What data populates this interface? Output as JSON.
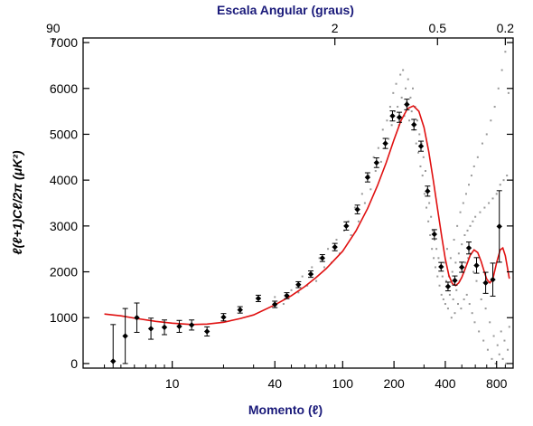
{
  "chart_data": {
    "type": "scatter",
    "title": "",
    "xlabel": "Momento (ℓ)",
    "ylabel": "ℓ(ℓ+1)Cℓ/2π (μK²)",
    "top_xlabel": "Escala Angular (graus)",
    "x_scale": "log",
    "xlim": [
      3,
      1000
    ],
    "ylim": [
      -100,
      7100
    ],
    "x_ticks": [
      10,
      40,
      100,
      200,
      400,
      800
    ],
    "x_tick_labels": [
      "10",
      "40",
      "100",
      "200",
      "400",
      "800"
    ],
    "top_ticks_multipole": [
      2,
      90,
      360,
      900
    ],
    "top_tick_labels": [
      "90",
      "2",
      "0.5",
      "0.2"
    ],
    "y_ticks": [
      0,
      1000,
      2000,
      3000,
      4000,
      5000,
      6000,
      7000
    ],
    "y_tick_labels": [
      "0",
      "1000",
      "2000",
      "3000",
      "4000",
      "5000",
      "6000",
      "7000"
    ],
    "grid": false,
    "colors": {
      "model": "#e01010",
      "binned": "#000000",
      "raw": "#999999",
      "axis_title": "#1a1a7a"
    },
    "series": [
      {
        "kind": "model-curve",
        "points": [
          [
            4,
            1080
          ],
          [
            5,
            1040
          ],
          [
            6,
            990
          ],
          [
            8,
            920
          ],
          [
            10,
            880
          ],
          [
            13,
            850
          ],
          [
            16,
            860
          ],
          [
            20,
            900
          ],
          [
            25,
            980
          ],
          [
            30,
            1060
          ],
          [
            40,
            1280
          ],
          [
            50,
            1480
          ],
          [
            60,
            1680
          ],
          [
            70,
            1880
          ],
          [
            80,
            2070
          ],
          [
            100,
            2450
          ],
          [
            120,
            2900
          ],
          [
            140,
            3380
          ],
          [
            160,
            3880
          ],
          [
            180,
            4380
          ],
          [
            200,
            4880
          ],
          [
            220,
            5300
          ],
          [
            240,
            5560
          ],
          [
            260,
            5620
          ],
          [
            280,
            5500
          ],
          [
            300,
            5150
          ],
          [
            320,
            4620
          ],
          [
            340,
            4000
          ],
          [
            360,
            3380
          ],
          [
            380,
            2800
          ],
          [
            400,
            2280
          ],
          [
            420,
            1920
          ],
          [
            440,
            1740
          ],
          [
            460,
            1700
          ],
          [
            480,
            1760
          ],
          [
            500,
            1880
          ],
          [
            530,
            2120
          ],
          [
            560,
            2360
          ],
          [
            590,
            2480
          ],
          [
            620,
            2420
          ],
          [
            650,
            2220
          ],
          [
            680,
            1980
          ],
          [
            700,
            1840
          ],
          [
            730,
            1760
          ],
          [
            760,
            1840
          ],
          [
            800,
            2200
          ],
          [
            840,
            2480
          ],
          [
            870,
            2520
          ],
          [
            900,
            2350
          ],
          [
            930,
            2050
          ],
          [
            950,
            1850
          ]
        ]
      },
      {
        "kind": "binned-points",
        "points": [
          {
            "x": 4.5,
            "y": 50,
            "err": 800
          },
          {
            "x": 5.3,
            "y": 600,
            "err": 600
          },
          {
            "x": 6.2,
            "y": 1000,
            "err": 320
          },
          {
            "x": 7.5,
            "y": 760,
            "err": 230
          },
          {
            "x": 9,
            "y": 790,
            "err": 160
          },
          {
            "x": 11,
            "y": 810,
            "err": 130
          },
          {
            "x": 13,
            "y": 840,
            "err": 110
          },
          {
            "x": 16,
            "y": 700,
            "err": 100
          },
          {
            "x": 20,
            "y": 1010,
            "err": 80
          },
          {
            "x": 25,
            "y": 1170,
            "err": 70
          },
          {
            "x": 32,
            "y": 1420,
            "err": 70
          },
          {
            "x": 40,
            "y": 1290,
            "err": 70
          },
          {
            "x": 47,
            "y": 1480,
            "err": 65
          },
          {
            "x": 55,
            "y": 1720,
            "err": 65
          },
          {
            "x": 65,
            "y": 1950,
            "err": 70
          },
          {
            "x": 76,
            "y": 2300,
            "err": 75
          },
          {
            "x": 90,
            "y": 2540,
            "err": 80
          },
          {
            "x": 105,
            "y": 3000,
            "err": 90
          },
          {
            "x": 122,
            "y": 3360,
            "err": 95
          },
          {
            "x": 140,
            "y": 4060,
            "err": 100
          },
          {
            "x": 158,
            "y": 4380,
            "err": 105
          },
          {
            "x": 178,
            "y": 4800,
            "err": 110
          },
          {
            "x": 196,
            "y": 5400,
            "err": 110
          },
          {
            "x": 215,
            "y": 5370,
            "err": 110
          },
          {
            "x": 238,
            "y": 5650,
            "err": 115
          },
          {
            "x": 262,
            "y": 5210,
            "err": 115
          },
          {
            "x": 288,
            "y": 4740,
            "err": 110
          },
          {
            "x": 315,
            "y": 3760,
            "err": 110
          },
          {
            "x": 345,
            "y": 2820,
            "err": 100
          },
          {
            "x": 378,
            "y": 2110,
            "err": 95
          },
          {
            "x": 415,
            "y": 1680,
            "err": 95
          },
          {
            "x": 455,
            "y": 1810,
            "err": 100
          },
          {
            "x": 500,
            "y": 2100,
            "err": 110
          },
          {
            "x": 550,
            "y": 2520,
            "err": 130
          },
          {
            "x": 610,
            "y": 2140,
            "err": 170
          },
          {
            "x": 690,
            "y": 1760,
            "err": 230
          },
          {
            "x": 760,
            "y": 1830,
            "err": 360
          },
          {
            "x": 830,
            "y": 2990,
            "err": 780
          }
        ]
      },
      {
        "kind": "raw-scatter",
        "description_level": "unbinned per-multipole estimates (sampled)",
        "points": [
          [
            40,
            1450
          ],
          [
            45,
            1300
          ],
          [
            50,
            1600
          ],
          [
            55,
            1550
          ],
          [
            58,
            1900
          ],
          [
            62,
            1700
          ],
          [
            66,
            2100
          ],
          [
            70,
            1800
          ],
          [
            73,
            2300
          ],
          [
            78,
            2100
          ],
          [
            82,
            2500
          ],
          [
            86,
            2200
          ],
          [
            92,
            2700
          ],
          [
            96,
            2400
          ],
          [
            102,
            2900
          ],
          [
            108,
            3100
          ],
          [
            112,
            2800
          ],
          [
            118,
            3400
          ],
          [
            124,
            3100
          ],
          [
            130,
            3700
          ],
          [
            135,
            3500
          ],
          [
            142,
            4100
          ],
          [
            146,
            3800
          ],
          [
            152,
            4500
          ],
          [
            156,
            4200
          ],
          [
            162,
            4700
          ],
          [
            168,
            4400
          ],
          [
            172,
            5100
          ],
          [
            176,
            4700
          ],
          [
            182,
            5300
          ],
          [
            186,
            4900
          ],
          [
            190,
            5600
          ],
          [
            194,
            5200
          ],
          [
            198,
            5900
          ],
          [
            202,
            5500
          ],
          [
            206,
            6100
          ],
          [
            210,
            5600
          ],
          [
            214,
            5200
          ],
          [
            218,
            6300
          ],
          [
            222,
            5800
          ],
          [
            226,
            6400
          ],
          [
            230,
            5400
          ],
          [
            234,
            6000
          ],
          [
            238,
            5700
          ],
          [
            242,
            6200
          ],
          [
            246,
            5300
          ],
          [
            250,
            5800
          ],
          [
            254,
            5500
          ],
          [
            258,
            6000
          ],
          [
            262,
            5100
          ],
          [
            266,
            5600
          ],
          [
            270,
            4800
          ],
          [
            274,
            5300
          ],
          [
            278,
            4600
          ],
          [
            282,
            5000
          ],
          [
            286,
            4300
          ],
          [
            290,
            4800
          ],
          [
            294,
            4100
          ],
          [
            298,
            4500
          ],
          [
            302,
            3700
          ],
          [
            306,
            4200
          ],
          [
            310,
            3400
          ],
          [
            314,
            3800
          ],
          [
            318,
            3100
          ],
          [
            322,
            3500
          ],
          [
            326,
            2800
          ],
          [
            330,
            3200
          ],
          [
            334,
            2500
          ],
          [
            338,
            2900
          ],
          [
            342,
            2300
          ],
          [
            346,
            2700
          ],
          [
            350,
            2100
          ],
          [
            355,
            2500
          ],
          [
            360,
            1900
          ],
          [
            365,
            2300
          ],
          [
            370,
            1700
          ],
          [
            375,
            2100
          ],
          [
            380,
            1500
          ],
          [
            385,
            1900
          ],
          [
            390,
            1400
          ],
          [
            395,
            2200
          ],
          [
            400,
            1300
          ],
          [
            405,
            1800
          ],
          [
            410,
            2500
          ],
          [
            415,
            1200
          ],
          [
            420,
            1900
          ],
          [
            425,
            1500
          ],
          [
            430,
            2300
          ],
          [
            435,
            1000
          ],
          [
            440,
            2000
          ],
          [
            445,
            1400
          ],
          [
            450,
            2700
          ],
          [
            455,
            1100
          ],
          [
            460,
            2200
          ],
          [
            465,
            1600
          ],
          [
            470,
            3000
          ],
          [
            475,
            1300
          ],
          [
            480,
            2400
          ],
          [
            485,
            1800
          ],
          [
            490,
            3300
          ],
          [
            495,
            1200
          ],
          [
            500,
            2600
          ],
          [
            505,
            2000
          ],
          [
            510,
            3500
          ],
          [
            515,
            1400
          ],
          [
            520,
            2800
          ],
          [
            525,
            2200
          ],
          [
            530,
            3700
          ],
          [
            535,
            1500
          ],
          [
            540,
            2900
          ],
          [
            545,
            2300
          ],
          [
            550,
            3900
          ],
          [
            555,
            1300
          ],
          [
            560,
            3000
          ],
          [
            565,
            2400
          ],
          [
            570,
            4100
          ],
          [
            575,
            1100
          ],
          [
            580,
            3100
          ],
          [
            585,
            2000
          ],
          [
            590,
            4300
          ],
          [
            595,
            900
          ],
          [
            600,
            3200
          ],
          [
            610,
            1800
          ],
          [
            620,
            4500
          ],
          [
            630,
            700
          ],
          [
            640,
            3300
          ],
          [
            650,
            1400
          ],
          [
            660,
            4800
          ],
          [
            670,
            500
          ],
          [
            680,
            3400
          ],
          [
            690,
            1200
          ],
          [
            700,
            5000
          ],
          [
            710,
            300
          ],
          [
            720,
            3500
          ],
          [
            730,
            900
          ],
          [
            740,
            5300
          ],
          [
            750,
            100
          ],
          [
            760,
            3600
          ],
          [
            770,
            600
          ],
          [
            780,
            5600
          ],
          [
            790,
            0
          ],
          [
            800,
            3700
          ],
          [
            810,
            400
          ],
          [
            820,
            6000
          ],
          [
            830,
            200
          ],
          [
            840,
            3900
          ],
          [
            850,
            700
          ],
          [
            860,
            6400
          ],
          [
            870,
            100
          ],
          [
            880,
            4000
          ],
          [
            890,
            500
          ],
          [
            900,
            6800
          ],
          [
            910,
            0
          ],
          [
            920,
            4100
          ],
          [
            930,
            300
          ],
          [
            940,
            5900
          ],
          [
            950,
            800
          ]
        ]
      }
    ]
  }
}
